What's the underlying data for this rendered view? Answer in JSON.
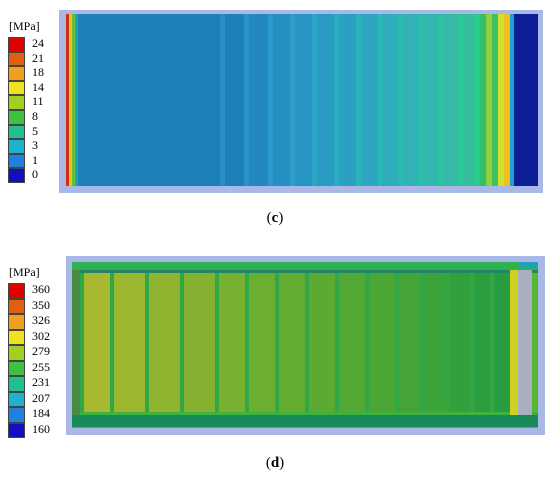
{
  "panels": [
    {
      "label": "c",
      "unit": "[MPa]",
      "scale": [
        "24",
        "21",
        "18",
        "14",
        "11",
        "8",
        "5",
        "3",
        "1",
        "0"
      ],
      "colors": [
        "#e00000",
        "#e06010",
        "#f0a020",
        "#f0e020",
        "#a0d020",
        "#40c040",
        "#20c090",
        "#20b0d0",
        "#2080e0",
        "#1010c0"
      ]
    },
    {
      "label": "d",
      "unit": "[MPa]",
      "scale": [
        "360",
        "350",
        "326",
        "302",
        "279",
        "255",
        "231",
        "207",
        "184",
        "160"
      ],
      "colors": [
        "#e00000",
        "#e06010",
        "#f0a020",
        "#f0e020",
        "#a0d020",
        "#40c040",
        "#20c090",
        "#20b0d0",
        "#2080e0",
        "#1010c0"
      ]
    }
  ]
}
